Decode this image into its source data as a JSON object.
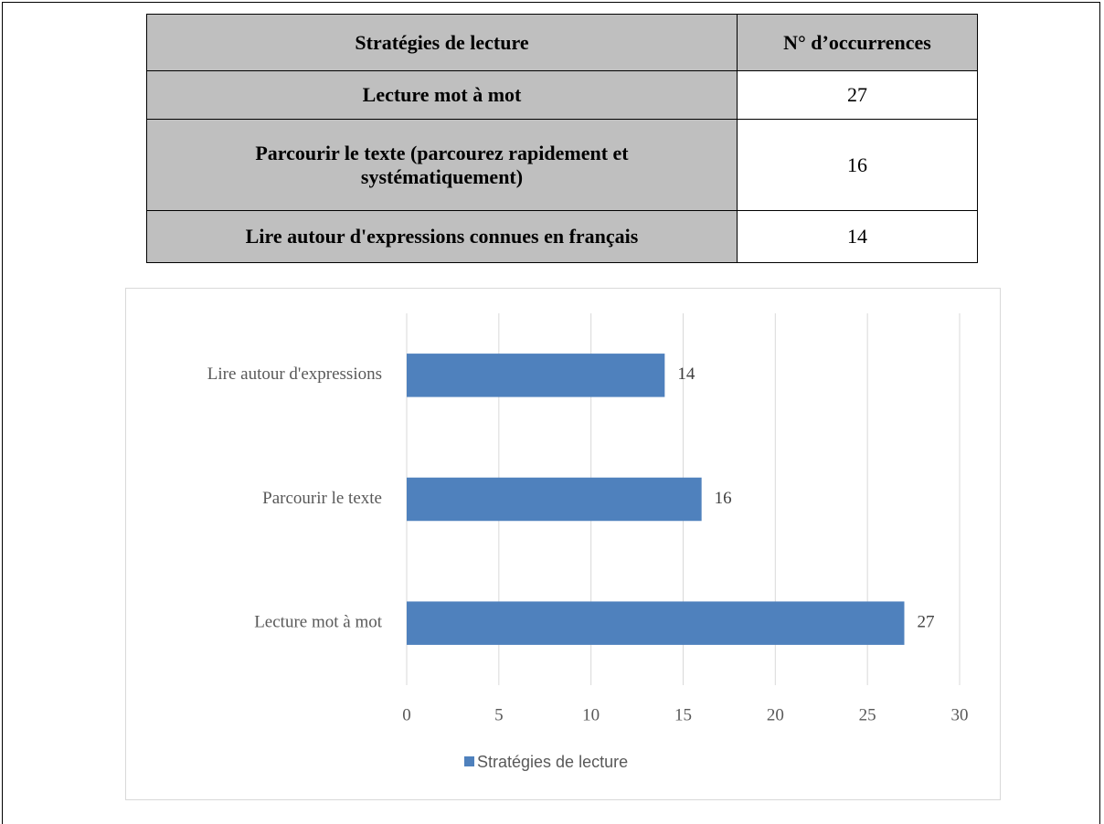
{
  "table": {
    "header": [
      "Stratégies de lecture",
      "N° d’occurrences"
    ],
    "rows": [
      [
        "Lecture mot à mot",
        27
      ],
      [
        "Parcourir le texte (parcourez rapidement et systématiquement)",
        16
      ],
      [
        "Lire autour d'expressions connues en français",
        14
      ]
    ]
  },
  "chart_data": {
    "type": "bar",
    "orientation": "horizontal",
    "categories": [
      "Lecture mot à mot",
      "Parcourir le texte",
      "Lire autour d'expressions"
    ],
    "series": [
      {
        "name": "Stratégies de lecture",
        "color": "#4f81bd",
        "values": [
          27,
          16,
          14
        ]
      }
    ],
    "xlim": [
      0,
      30
    ],
    "xticks": [
      0,
      5,
      10,
      15,
      20,
      25,
      30
    ],
    "grid": true,
    "legend": "bottom"
  }
}
